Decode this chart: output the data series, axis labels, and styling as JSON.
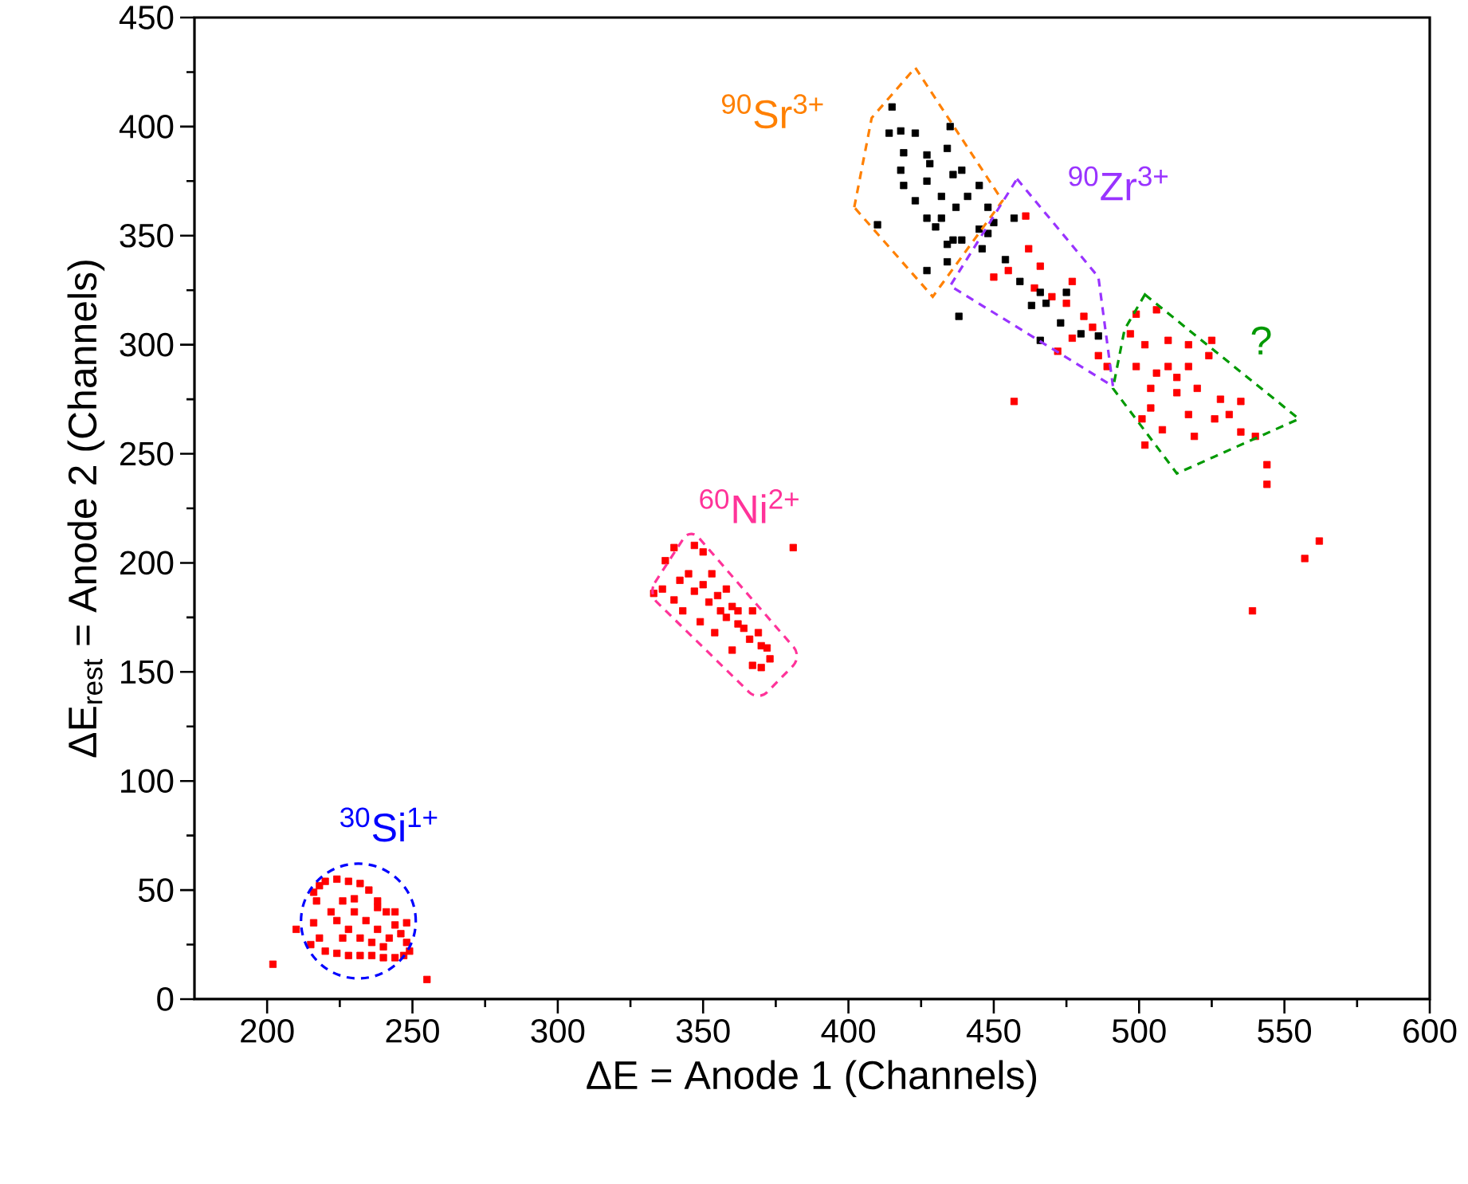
{
  "chart_data": {
    "type": "scatter",
    "xlabel": "ΔE = Anode 1 (Channels)",
    "ylabel": "ΔE$_{rest}$ = Anode 2 (Channels)",
    "xlim": [
      175,
      600
    ],
    "xticks": [
      200,
      {
        "value": 225,
        "label": null
      },
      250,
      {
        "value": 275,
        "label": null
      },
      300,
      {
        "value": 325,
        "label": null
      },
      350,
      {
        "value": 375,
        "label": null
      },
      400,
      {
        "value": 425,
        "label": null
      },
      450,
      {
        "value": 475,
        "label": null
      },
      500,
      {
        "value": 525,
        "label": null
      },
      550,
      {
        "value": 575,
        "label": null
      },
      600
    ],
    "ylim": [
      0,
      450
    ],
    "yticks": [
      0,
      {
        "value": 25,
        "label": null
      },
      50,
      {
        "value": 75,
        "label": null
      },
      100,
      {
        "value": 125,
        "label": null
      },
      150,
      {
        "value": 175,
        "label": null
      },
      200,
      {
        "value": 225,
        "label": null
      },
      250,
      {
        "value": 275,
        "label": null
      },
      300,
      {
        "value": 325,
        "label": null
      },
      350,
      {
        "value": 375,
        "label": null
      },
      400,
      {
        "value": 425,
        "label": null
      },
      450
    ],
    "grid": false,
    "marker": "square",
    "series": [
      {
        "color": "#ff0000",
        "x": [
          202,
          255,
          210,
          216,
          244,
          248,
          215,
          216,
          217,
          218,
          220,
          224,
          228,
          232,
          235,
          238,
          241,
          244,
          246,
          248,
          249,
          247,
          244,
          240,
          236,
          232,
          228,
          224,
          220,
          218,
          222,
          226,
          230,
          234,
          238,
          242,
          228,
          224,
          232,
          236,
          238,
          226,
          230,
          240,
          337,
          340,
          347,
          350,
          333,
          336,
          353,
          358,
          362,
          367,
          369,
          372,
          373,
          370,
          367,
          360,
          354,
          349,
          343,
          340,
          381,
          345,
          350,
          355,
          360,
          352,
          358,
          364,
          347,
          342,
          366,
          362,
          370,
          356,
          461,
          450,
          455,
          462,
          466,
          470,
          475,
          477,
          481,
          484,
          477,
          472,
          486,
          489,
          457,
          464,
          499,
          506,
          497,
          502,
          510,
          517,
          524,
          499,
          506,
          513,
          520,
          528,
          535,
          531,
          526,
          517,
          508,
          501,
          502,
          504,
          519,
          535,
          540,
          510,
          517,
          513,
          504,
          525,
          544,
          544,
          562,
          557,
          539
        ],
        "values": [
          16,
          9,
          32,
          49,
          40,
          35,
          25,
          35,
          45,
          52,
          54,
          55,
          54,
          53,
          50,
          45,
          40,
          34,
          30,
          26,
          22,
          20,
          19,
          19,
          20,
          20,
          20,
          21,
          22,
          28,
          40,
          45,
          40,
          36,
          32,
          28,
          32,
          36,
          28,
          26,
          42,
          28,
          46,
          24,
          201,
          207,
          208,
          205,
          186,
          188,
          195,
          188,
          178,
          178,
          168,
          161,
          156,
          152,
          153,
          160,
          168,
          173,
          178,
          183,
          207,
          195,
          190,
          185,
          180,
          182,
          175,
          170,
          187,
          192,
          165,
          172,
          162,
          178,
          359,
          331,
          334,
          344,
          336,
          322,
          319,
          329,
          313,
          308,
          303,
          297,
          295,
          290,
          274,
          326,
          314,
          316,
          305,
          300,
          302,
          300,
          295,
          290,
          287,
          285,
          280,
          275,
          274,
          268,
          266,
          268,
          261,
          266,
          254,
          271,
          258,
          260,
          258,
          290,
          290,
          278,
          280,
          302,
          245,
          236,
          210,
          202,
          178
        ]
      },
      {
        "color": "#000000",
        "x": [
          415,
          414,
          418,
          423,
          435,
          419,
          427,
          434,
          439,
          445,
          448,
          450,
          445,
          439,
          434,
          430,
          427,
          423,
          419,
          418,
          410,
          427,
          434,
          436,
          427,
          432,
          437,
          428,
          436,
          441,
          432,
          448,
          454,
          459,
          466,
          468,
          475,
          463,
          473,
          480,
          486,
          438,
          466,
          457,
          446
        ],
        "values": [
          409,
          397,
          398,
          397,
          400,
          388,
          387,
          390,
          380,
          373,
          363,
          356,
          353,
          348,
          346,
          354,
          358,
          366,
          373,
          380,
          355,
          334,
          338,
          348,
          375,
          368,
          363,
          383,
          378,
          368,
          358,
          351,
          339,
          329,
          324,
          319,
          324,
          318,
          310,
          305,
          304,
          313,
          302,
          358,
          344
        ]
      }
    ],
    "annotations": [
      "$^{90}$Sr$^{3+}$",
      "$^{90}$Zr$^{3+}$",
      "?",
      "$^{60}$Ni$^{2+}$",
      "$^{30}$Si$^{1+}$"
    ]
  }
}
